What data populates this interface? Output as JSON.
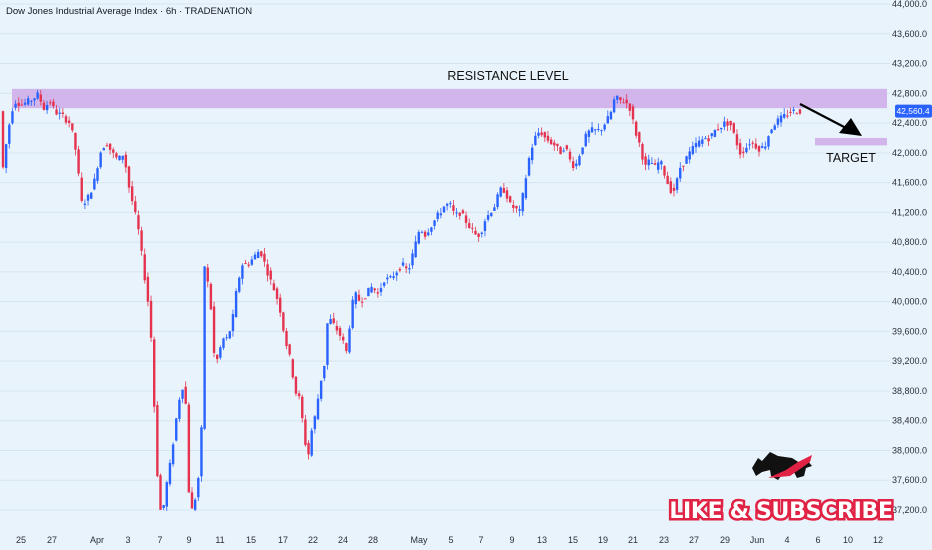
{
  "header": {
    "title": "Dow Jones Industrial Average Index · 6h · TRADENATION"
  },
  "annotations": {
    "resistance_label": "RESISTANCE LEVEL",
    "target_label": "TARGET",
    "last_price": "42,560.4",
    "promo": "LIKE & SUBSCRIBE",
    "promo_icon": "bull-icon"
  },
  "colors": {
    "background": "#e9f3fb",
    "up": "#2962ff",
    "down": "#e5334f",
    "zone": "#cfb0e8",
    "price_tag": "#2962ff"
  },
  "chart_data": {
    "type": "candlestick",
    "ylim": [
      36900,
      44000
    ],
    "y_ticks": [
      "44,000.0",
      "43,600.0",
      "43,200.0",
      "42,800.0",
      "42,400.0",
      "42,000.0",
      "41,600.0",
      "41,200.0",
      "40,800.0",
      "40,400.0",
      "40,000.0",
      "39,600.0",
      "39,200.0",
      "38,800.0",
      "38,400.0",
      "38,000.0",
      "37,600.0",
      "37,200.0"
    ],
    "x_ticks": [
      "25",
      "27",
      "Apr",
      "3",
      "7",
      "9",
      "11",
      "15",
      "17",
      "22",
      "24",
      "28",
      "May",
      "5",
      "7",
      "9",
      "13",
      "15",
      "19",
      "21",
      "23",
      "27",
      "29",
      "Jun",
      "4",
      "6",
      "10",
      "12"
    ],
    "resistance_zone": [
      42600,
      42860
    ],
    "target_zone": [
      42100,
      42200
    ],
    "last_price": 42560.4,
    "path": [
      [
        3,
        41800
      ],
      [
        8,
        42300
      ],
      [
        14,
        42700
      ],
      [
        22,
        42650
      ],
      [
        30,
        42700
      ],
      [
        38,
        42780
      ],
      [
        44,
        42600
      ],
      [
        50,
        42700
      ],
      [
        55,
        42550
      ],
      [
        62,
        42500
      ],
      [
        70,
        42400
      ],
      [
        75,
        42100
      ],
      [
        82,
        41300
      ],
      [
        88,
        41400
      ],
      [
        94,
        41600
      ],
      [
        100,
        42000
      ],
      [
        106,
        42150
      ],
      [
        112,
        42000
      ],
      [
        118,
        41900
      ],
      [
        124,
        42000
      ],
      [
        128,
        41600
      ],
      [
        133,
        41300
      ],
      [
        138,
        41000
      ],
      [
        142,
        40600
      ],
      [
        146,
        40200
      ],
      [
        150,
        39800
      ],
      [
        153,
        39000
      ],
      [
        156,
        38000
      ],
      [
        159,
        37300
      ],
      [
        162,
        37100
      ],
      [
        166,
        37500
      ],
      [
        170,
        37800
      ],
      [
        174,
        38200
      ],
      [
        178,
        38600
      ],
      [
        182,
        38900
      ],
      [
        186,
        38600
      ],
      [
        189,
        37400
      ],
      [
        192,
        37200
      ],
      [
        196,
        37400
      ],
      [
        199,
        37700
      ],
      [
        202,
        38400
      ],
      [
        205,
        40800
      ],
      [
        208,
        40200
      ],
      [
        211,
        39900
      ],
      [
        214,
        39300
      ],
      [
        218,
        39200
      ],
      [
        222,
        39500
      ],
      [
        227,
        39500
      ],
      [
        232,
        39700
      ],
      [
        237,
        40200
      ],
      [
        242,
        40500
      ],
      [
        248,
        40500
      ],
      [
        254,
        40600
      ],
      [
        260,
        40700
      ],
      [
        265,
        40500
      ],
      [
        270,
        40300
      ],
      [
        276,
        40100
      ],
      [
        280,
        39900
      ],
      [
        285,
        39500
      ],
      [
        289,
        39300
      ],
      [
        293,
        39000
      ],
      [
        297,
        38700
      ],
      [
        300,
        38700
      ],
      [
        304,
        38200
      ],
      [
        308,
        37900
      ],
      [
        312,
        38300
      ],
      [
        316,
        38500
      ],
      [
        320,
        38900
      ],
      [
        324,
        39100
      ],
      [
        328,
        39800
      ],
      [
        333,
        39700
      ],
      [
        338,
        39600
      ],
      [
        342,
        39500
      ],
      [
        347,
        39300
      ],
      [
        351,
        39900
      ],
      [
        355,
        40100
      ],
      [
        360,
        40000
      ],
      [
        366,
        40100
      ],
      [
        372,
        40200
      ],
      [
        378,
        40100
      ],
      [
        384,
        40300
      ],
      [
        390,
        40300
      ],
      [
        396,
        40400
      ],
      [
        402,
        40500
      ],
      [
        408,
        40400
      ],
      [
        414,
        40700
      ],
      [
        420,
        41000
      ],
      [
        425,
        40900
      ],
      [
        430,
        41000
      ],
      [
        435,
        41100
      ],
      [
        440,
        41200
      ],
      [
        445,
        41300
      ],
      [
        450,
        41300
      ],
      [
        455,
        41150
      ],
      [
        460,
        41200
      ],
      [
        465,
        41100
      ],
      [
        470,
        41000
      ],
      [
        475,
        40900
      ],
      [
        480,
        40900
      ],
      [
        485,
        41100
      ],
      [
        490,
        41200
      ],
      [
        495,
        41300
      ],
      [
        500,
        41500
      ],
      [
        505,
        41500
      ],
      [
        510,
        41300
      ],
      [
        515,
        41250
      ],
      [
        520,
        41200
      ],
      [
        525,
        41600
      ],
      [
        530,
        42000
      ],
      [
        535,
        42200
      ],
      [
        540,
        42300
      ],
      [
        545,
        42200
      ],
      [
        550,
        42150
      ],
      [
        555,
        42100
      ],
      [
        560,
        42000
      ],
      [
        565,
        42100
      ],
      [
        570,
        41900
      ],
      [
        575,
        41800
      ],
      [
        580,
        42000
      ],
      [
        585,
        42200
      ],
      [
        590,
        42300
      ],
      [
        595,
        42300
      ],
      [
        600,
        42300
      ],
      [
        605,
        42400
      ],
      [
        610,
        42500
      ],
      [
        615,
        42750
      ],
      [
        620,
        42700
      ],
      [
        625,
        42700
      ],
      [
        630,
        42600
      ],
      [
        635,
        42300
      ],
      [
        640,
        42100
      ],
      [
        645,
        41800
      ],
      [
        650,
        41900
      ],
      [
        655,
        41800
      ],
      [
        660,
        41900
      ],
      [
        665,
        41700
      ],
      [
        670,
        41500
      ],
      [
        675,
        41500
      ],
      [
        680,
        41800
      ],
      [
        685,
        41900
      ],
      [
        690,
        42000
      ],
      [
        695,
        42100
      ],
      [
        700,
        42150
      ],
      [
        705,
        42200
      ],
      [
        710,
        42200
      ],
      [
        715,
        42300
      ],
      [
        720,
        42350
      ],
      [
        725,
        42400
      ],
      [
        730,
        42400
      ],
      [
        735,
        42200
      ],
      [
        740,
        42000
      ],
      [
        745,
        42050
      ],
      [
        750,
        42150
      ],
      [
        755,
        42100
      ],
      [
        760,
        42050
      ],
      [
        765,
        42100
      ],
      [
        770,
        42300
      ],
      [
        775,
        42400
      ],
      [
        780,
        42450
      ],
      [
        785,
        42500
      ],
      [
        790,
        42550
      ],
      [
        795,
        42560
      ],
      [
        800,
        42560.4
      ]
    ]
  }
}
